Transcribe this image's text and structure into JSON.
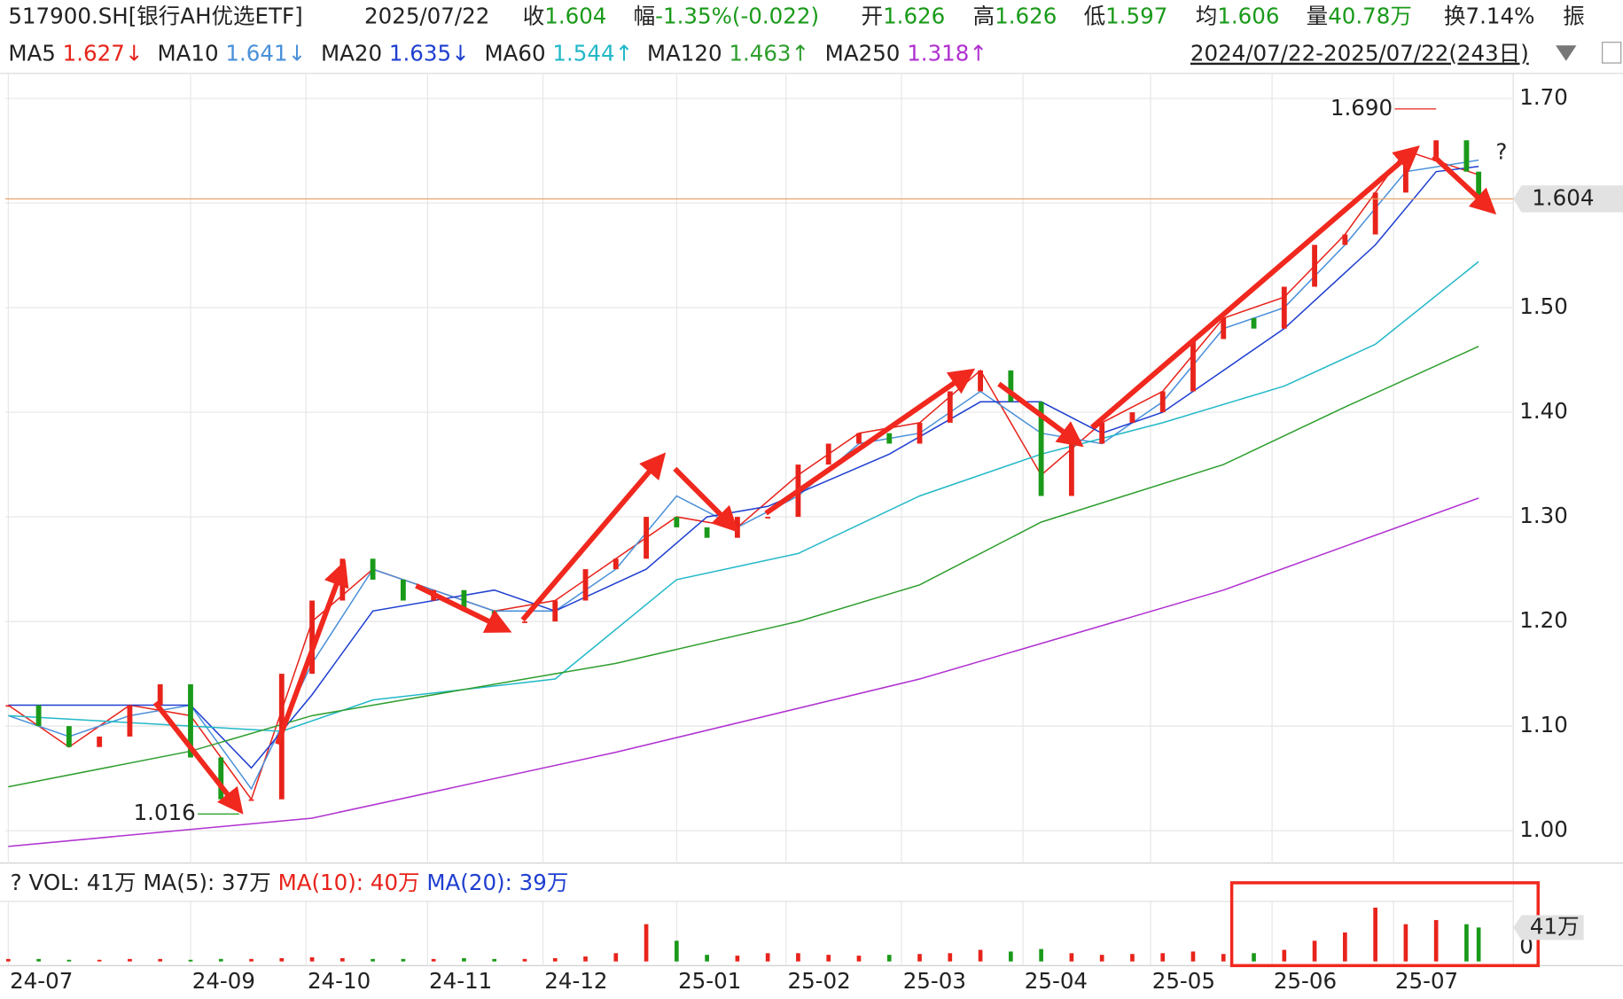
{
  "header": {
    "code": "517900.SH[银行AH优选ETF]",
    "date": "2025/07/22",
    "items": [
      {
        "label": "收",
        "value": "1.604"
      },
      {
        "label": "幅",
        "value": "-1.35%(-0.022)"
      },
      {
        "label": "开",
        "value": "1.626"
      },
      {
        "label": "高",
        "value": "1.626"
      },
      {
        "label": "低",
        "value": "1.597"
      },
      {
        "label": "均",
        "value": "1.606"
      },
      {
        "label": "量",
        "value": "40.78万"
      },
      {
        "label": "换",
        "value": "7.14%"
      },
      {
        "label": "振",
        "value": ""
      }
    ],
    "range": "2024/07/22-2025/07/22(243日)"
  },
  "chart_data": {
    "type": "candlestick",
    "x": [
      0,
      5,
      10,
      15,
      20,
      25,
      30,
      35,
      40,
      45,
      50,
      55,
      60,
      65,
      70,
      75,
      80,
      85,
      90,
      95,
      100,
      105,
      110,
      115,
      120,
      125,
      130,
      135,
      140,
      145,
      150,
      155,
      160,
      165,
      170,
      175,
      180,
      185,
      190,
      195,
      200,
      205,
      210,
      215,
      220,
      225,
      230,
      235,
      240,
      242
    ],
    "close": [
      1.12,
      1.1,
      1.08,
      1.09,
      1.12,
      1.14,
      1.07,
      1.03,
      1.03,
      1.15,
      1.22,
      1.26,
      1.24,
      1.22,
      1.23,
      1.21,
      1.2,
      1.2,
      1.22,
      1.25,
      1.26,
      1.3,
      1.29,
      1.28,
      1.3,
      1.3,
      1.35,
      1.37,
      1.38,
      1.37,
      1.39,
      1.42,
      1.44,
      1.41,
      1.32,
      1.37,
      1.39,
      1.4,
      1.42,
      1.47,
      1.49,
      1.48,
      1.52,
      1.56,
      1.57,
      1.61,
      1.64,
      1.66,
      1.63,
      1.604
    ],
    "up_color": "#e8231b",
    "down_color": "#1a9a1a",
    "xlim": [
      0,
      242
    ],
    "ylim": [
      0.97,
      1.724
    ],
    "yticks": [
      {
        "value": 1.0,
        "label": "1.00"
      },
      {
        "value": 1.1,
        "label": "1.10"
      },
      {
        "value": 1.2,
        "label": "1.20"
      },
      {
        "value": 1.3,
        "label": "1.30"
      },
      {
        "value": 1.4,
        "label": "1.40"
      },
      {
        "value": 1.5,
        "label": "1.50"
      },
      {
        "value": 1.6,
        "label": "1.60"
      },
      {
        "value": 1.7,
        "label": "1.70"
      }
    ],
    "xticks": [
      {
        "value": 0,
        "label": "24-07"
      },
      {
        "value": 30,
        "label": "24-09"
      },
      {
        "value": 49,
        "label": "24-10"
      },
      {
        "value": 69,
        "label": "24-11"
      },
      {
        "value": 88,
        "label": "24-12"
      },
      {
        "value": 110,
        "label": "25-01"
      },
      {
        "value": 128,
        "label": "25-02"
      },
      {
        "value": 147,
        "label": "25-03"
      },
      {
        "value": 167,
        "label": "25-04"
      },
      {
        "value": 188,
        "label": "25-05"
      },
      {
        "value": 208,
        "label": "25-06"
      },
      {
        "value": 228,
        "label": "25-07"
      }
    ],
    "grid": true,
    "series": [
      {
        "name": "MA5",
        "color": "#e8231b",
        "value_label": "1.627↓",
        "x": [
          0,
          10,
          20,
          30,
          40,
          50,
          60,
          70,
          80,
          90,
          100,
          110,
          120,
          130,
          140,
          150,
          160,
          170,
          180,
          190,
          200,
          210,
          220,
          230,
          242
        ],
        "values": [
          1.12,
          1.08,
          1.12,
          1.11,
          1.03,
          1.2,
          1.25,
          1.23,
          1.21,
          1.22,
          1.26,
          1.3,
          1.29,
          1.34,
          1.38,
          1.39,
          1.44,
          1.34,
          1.39,
          1.42,
          1.49,
          1.51,
          1.57,
          1.65,
          1.627
        ]
      },
      {
        "name": "MA10",
        "color": "#4a90d9",
        "value_label": "1.641↓",
        "x": [
          0,
          10,
          20,
          30,
          40,
          50,
          60,
          70,
          80,
          90,
          100,
          110,
          120,
          130,
          140,
          150,
          160,
          170,
          180,
          190,
          200,
          210,
          220,
          230,
          242
        ],
        "values": [
          1.11,
          1.09,
          1.11,
          1.12,
          1.04,
          1.16,
          1.25,
          1.23,
          1.21,
          1.21,
          1.25,
          1.32,
          1.29,
          1.32,
          1.37,
          1.38,
          1.42,
          1.38,
          1.37,
          1.41,
          1.48,
          1.5,
          1.56,
          1.63,
          1.641
        ]
      },
      {
        "name": "MA20",
        "color": "#1f3fd0",
        "value_label": "1.635↓",
        "x": [
          0,
          30,
          40,
          50,
          60,
          80,
          90,
          105,
          115,
          125,
          145,
          160,
          170,
          180,
          190,
          210,
          225,
          235,
          242
        ],
        "values": [
          1.12,
          1.12,
          1.06,
          1.13,
          1.21,
          1.23,
          1.21,
          1.25,
          1.3,
          1.31,
          1.36,
          1.41,
          1.41,
          1.38,
          1.4,
          1.48,
          1.56,
          1.63,
          1.635
        ]
      },
      {
        "name": "MA60",
        "color": "#22b8c8",
        "value_label": "1.544↑",
        "x": [
          0,
          30,
          45,
          60,
          90,
          110,
          130,
          150,
          170,
          190,
          210,
          225,
          242
        ],
        "values": [
          1.11,
          1.1,
          1.095,
          1.125,
          1.145,
          1.24,
          1.265,
          1.32,
          1.36,
          1.39,
          1.425,
          1.465,
          1.544
        ]
      },
      {
        "name": "MA120",
        "color": "#2e9e2e",
        "value_label": "1.463↑",
        "x": [
          0,
          30,
          50,
          100,
          130,
          150,
          170,
          200,
          220,
          242
        ],
        "values": [
          1.042,
          1.076,
          1.11,
          1.16,
          1.2,
          1.235,
          1.295,
          1.35,
          1.405,
          1.463
        ]
      },
      {
        "name": "MA250",
        "color": "#b030d0",
        "value_label": "1.318↑",
        "x": [
          0,
          50,
          100,
          150,
          200,
          242
        ],
        "values": [
          0.985,
          1.012,
          1.075,
          1.145,
          1.23,
          1.318
        ]
      }
    ],
    "last_price": {
      "value": 1.604,
      "label": "1.604"
    },
    "annotations": [
      {
        "x": 235,
        "value": 1.69,
        "label": "1.690",
        "color": "#e8231b"
      },
      {
        "x": 38,
        "value": 1.016,
        "label": "1.016",
        "color": "#1a9a1a"
      }
    ],
    "question_mark": "?",
    "volume": {
      "values": [
        3,
        3,
        2,
        2,
        3,
        3,
        2,
        3,
        3,
        4,
        5,
        4,
        3,
        3,
        3,
        4,
        3,
        3,
        4,
        6,
        10,
        45,
        25,
        8,
        7,
        10,
        10,
        8,
        7,
        8,
        9,
        10,
        14,
        12,
        15,
        10,
        8,
        9,
        10,
        12,
        9,
        10,
        14,
        25,
        35,
        65,
        45,
        50,
        45,
        41
      ],
      "ylim": [
        0,
        72.5
      ],
      "yticks": [
        {
          "value": 0,
          "label": "0"
        }
      ],
      "last": {
        "value": 41,
        "label": "41万"
      },
      "legend": [
        {
          "text": "?",
          "color": "#222"
        },
        {
          "text": "VOL: 41万",
          "color": "#222"
        },
        {
          "text": "MA(5): 37万",
          "color": "#222"
        },
        {
          "text": "MA(10): 40万",
          "color": "#e8231b"
        },
        {
          "text": "MA(20): 39万",
          "color": "#1f3fd0"
        }
      ]
    }
  }
}
